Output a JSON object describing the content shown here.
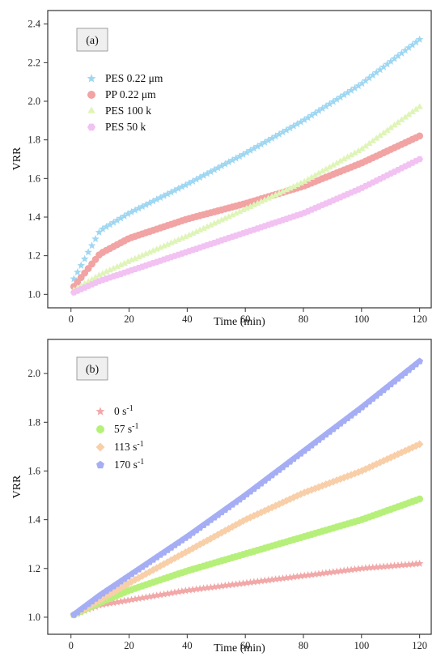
{
  "chart_data": [
    {
      "type": "scatter",
      "panel_label": "(a)",
      "xlabel": "Time (min)",
      "ylabel": "VRR",
      "xlim": [
        -8,
        124
      ],
      "ylim": [
        0.93,
        2.47
      ],
      "x_ticks": [
        0,
        20,
        40,
        60,
        80,
        100,
        120
      ],
      "y_ticks": [
        1.0,
        1.2,
        1.4,
        1.6,
        1.8,
        2.0,
        2.2,
        2.4
      ],
      "y_tick_labels": [
        "1.0",
        "1.2",
        "1.4",
        "1.6",
        "1.8",
        "2.0",
        "2.2",
        "2.4"
      ],
      "legend_position": "upper-left",
      "x": [
        1,
        10,
        20,
        40,
        60,
        80,
        100,
        120
      ],
      "series": [
        {
          "name": "PES 0.22 μm",
          "marker": "star",
          "color": "#9fd7f2",
          "values": [
            1.08,
            1.33,
            1.42,
            1.57,
            1.73,
            1.9,
            2.09,
            2.32
          ]
        },
        {
          "name": "PP 0.22 μm",
          "marker": "circle",
          "color": "#f2a3a3",
          "values": [
            1.04,
            1.21,
            1.29,
            1.39,
            1.47,
            1.56,
            1.68,
            1.82
          ]
        },
        {
          "name": "PES 100 k",
          "marker": "triangle",
          "color": "#dff5b8",
          "values": [
            1.02,
            1.1,
            1.17,
            1.3,
            1.44,
            1.58,
            1.75,
            1.97
          ]
        },
        {
          "name": "PES 50 k",
          "marker": "hexagon",
          "color": "#f2c2f2",
          "values": [
            1.01,
            1.07,
            1.12,
            1.22,
            1.32,
            1.42,
            1.55,
            1.7
          ]
        }
      ]
    },
    {
      "type": "scatter",
      "panel_label": "(b)",
      "xlabel": "Time (min)",
      "ylabel": "VRR",
      "xlim": [
        -8,
        124
      ],
      "ylim": [
        0.93,
        2.14
      ],
      "x_ticks": [
        0,
        20,
        40,
        60,
        80,
        100,
        120
      ],
      "y_ticks": [
        1.0,
        1.2,
        1.4,
        1.6,
        1.8,
        2.0
      ],
      "y_tick_labels": [
        "1.0",
        "1.2",
        "1.4",
        "1.6",
        "1.8",
        "2.0"
      ],
      "legend_position": "upper-left",
      "x": [
        1,
        10,
        20,
        40,
        60,
        80,
        100,
        120
      ],
      "series": [
        {
          "name": "0 s",
          "name_sup": "-1",
          "marker": "star",
          "color": "#f2a8a8",
          "values": [
            1.01,
            1.05,
            1.07,
            1.11,
            1.14,
            1.17,
            1.2,
            1.22
          ]
        },
        {
          "name": "57 s",
          "name_sup": "-1",
          "marker": "circle",
          "color": "#b6f07a",
          "values": [
            1.01,
            1.06,
            1.11,
            1.19,
            1.26,
            1.33,
            1.4,
            1.485
          ]
        },
        {
          "name": "113 s",
          "name_sup": "-1",
          "marker": "diamond",
          "color": "#f8cfa8",
          "values": [
            1.01,
            1.07,
            1.14,
            1.27,
            1.4,
            1.51,
            1.6,
            1.71
          ]
        },
        {
          "name": "170 s",
          "name_sup": "-1",
          "marker": "pentagon",
          "color": "#a5aef4",
          "values": [
            1.01,
            1.09,
            1.17,
            1.33,
            1.5,
            1.68,
            1.86,
            2.05
          ]
        }
      ]
    }
  ]
}
